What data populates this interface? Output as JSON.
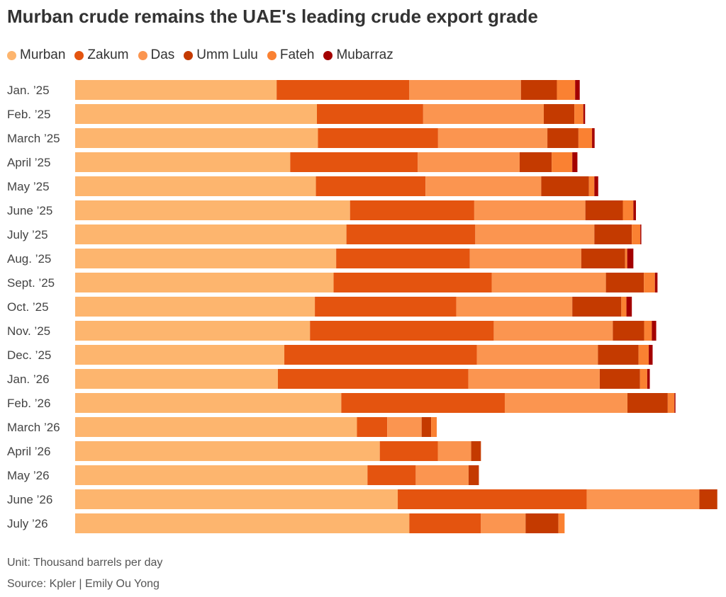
{
  "chart_data": {
    "type": "bar",
    "orientation": "horizontal",
    "stacked": true,
    "title": "Murban crude remains the UAE's leading crude export grade",
    "unit_note": "Unit: Thousand barrels per day",
    "source": "Source: Kpler | Emily Ou Yong",
    "legend_position": "top-left",
    "grid": false,
    "xlim": [
      0,
      2500
    ],
    "categories": [
      "Jan. ’25",
      "Feb. ’25",
      "March ’25",
      "April ’25",
      "May ’25",
      "June ’25",
      "July ’25",
      "Aug. ’25",
      "Sept. ’25",
      "Oct. ’25",
      "Nov. ’25",
      "Dec. ’25",
      "Jan. ’26",
      "Feb. ’26",
      "March ’26",
      "April ’26",
      "May ’26",
      "June ’26",
      "July ’26"
    ],
    "series": [
      {
        "name": "Murban",
        "color": "#FDB56E",
        "values": [
          785,
          942,
          946,
          838,
          938,
          1071,
          1057,
          1017,
          1007,
          934,
          915,
          815,
          790,
          1037,
          1098,
          1187,
          1139,
          1257,
          1302
        ]
      },
      {
        "name": "Zakum",
        "color": "#E4540F",
        "values": [
          517,
          414,
          468,
          497,
          427,
          484,
          502,
          521,
          616,
          551,
          716,
          750,
          742,
          637,
          118,
          226,
          188,
          736,
          279
        ]
      },
      {
        "name": "Das",
        "color": "#FB9550",
        "values": [
          435,
          470,
          426,
          397,
          451,
          433,
          464,
          434,
          445,
          452,
          464,
          472,
          512,
          478,
          134,
          130,
          206,
          439,
          174
        ]
      },
      {
        "name": "Umm Lulu",
        "color": "#C43A00",
        "values": [
          140,
          119,
          121,
          125,
          186,
          146,
          146,
          171,
          148,
          191,
          122,
          158,
          157,
          157,
          37,
          38,
          40,
          70,
          128
        ]
      },
      {
        "name": "Fateh",
        "color": "#FA8132",
        "values": [
          71,
          35,
          53,
          80,
          21,
          41,
          33,
          8,
          43,
          20,
          30,
          40,
          28,
          26,
          22,
          0,
          0,
          0,
          24
        ]
      },
      {
        "name": "Mubarraz",
        "color": "#A30000",
        "values": [
          18,
          7,
          10,
          20,
          15,
          10,
          4,
          24,
          10,
          21,
          17,
          15,
          10,
          4,
          0,
          0,
          0,
          0,
          0
        ]
      }
    ]
  }
}
